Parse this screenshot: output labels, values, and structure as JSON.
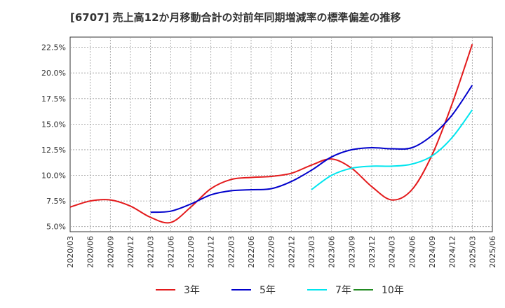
{
  "chart_data": {
    "type": "line",
    "title": "[6707]  売上高12か月移動合計の対前年同期増減率の標準偏差の推移",
    "xlabel": "",
    "ylabel": "",
    "ylim": [
      4.5,
      23.5
    ],
    "y_ticks": [
      "5.0%",
      "7.5%",
      "10.0%",
      "12.5%",
      "15.0%",
      "17.5%",
      "20.0%",
      "22.5%"
    ],
    "x_ticks": [
      "2020/03",
      "2020/06",
      "2020/09",
      "2020/12",
      "2021/03",
      "2021/06",
      "2021/09",
      "2021/12",
      "2022/03",
      "2022/06",
      "2022/09",
      "2022/12",
      "2023/03",
      "2023/06",
      "2023/09",
      "2023/12",
      "2024/03",
      "2024/06",
      "2024/09",
      "2024/12",
      "2025/03",
      "2025/06"
    ],
    "grid": true,
    "legend_position": "bottom",
    "series": [
      {
        "name": "3年",
        "color": "#e31a1c",
        "values": [
          6.9,
          7.5,
          7.6,
          7.0,
          5.9,
          5.4,
          6.9,
          8.7,
          9.6,
          9.8,
          9.9,
          10.2,
          11.0,
          11.6,
          10.7,
          8.9,
          7.6,
          8.6,
          12.0,
          17.0,
          22.8
        ]
      },
      {
        "name": "5年",
        "color": "#0000cc",
        "values": [
          null,
          null,
          null,
          null,
          6.4,
          6.5,
          7.2,
          8.1,
          8.5,
          8.6,
          8.7,
          9.4,
          10.5,
          11.8,
          12.5,
          12.7,
          12.6,
          12.7,
          13.9,
          15.9,
          18.8
        ]
      },
      {
        "name": "7年",
        "color": "#00e5ee",
        "values": [
          null,
          null,
          null,
          null,
          null,
          null,
          null,
          null,
          null,
          null,
          null,
          null,
          8.6,
          10.0,
          10.7,
          10.9,
          10.9,
          11.1,
          11.9,
          13.7,
          16.4
        ]
      },
      {
        "name": "10年",
        "color": "#228b22",
        "values": []
      }
    ]
  }
}
